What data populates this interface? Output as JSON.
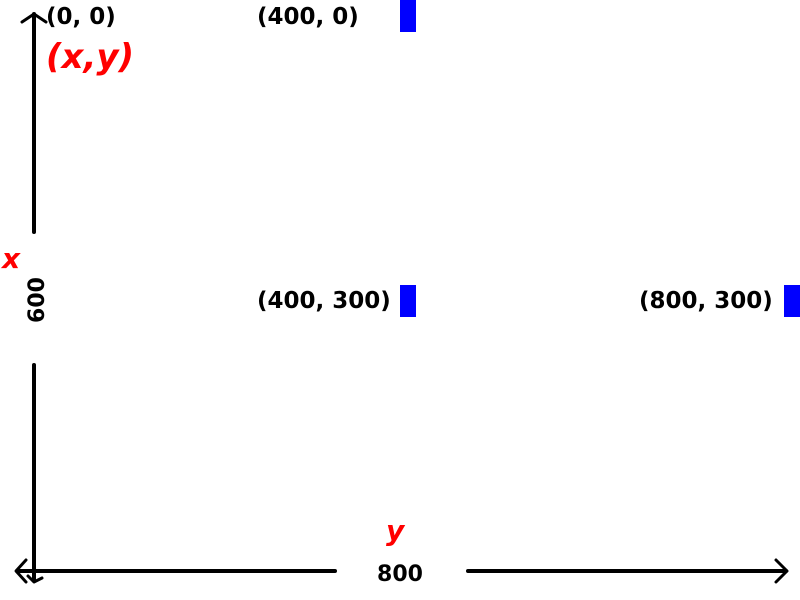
{
  "colors": {
    "axis": "#000000",
    "marker": "#0000ff",
    "annotation": "#ff0000"
  },
  "points": [
    {
      "label": "(0, 0)"
    },
    {
      "label": "(400, 0)"
    },
    {
      "label": "(400, 300)"
    },
    {
      "label": "(800, 300)"
    }
  ],
  "axes": {
    "vertical_value": "600",
    "horizontal_value": "800"
  },
  "annotations": {
    "pair": "(x,y)",
    "vertical_letter": "x",
    "horizontal_letter": "y"
  }
}
